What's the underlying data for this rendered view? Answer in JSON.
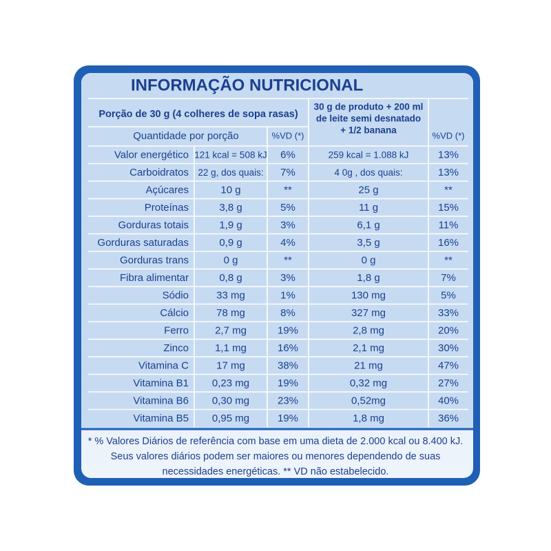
{
  "title": "INFORMAÇÃO NUTRICIONAL",
  "table": {
    "header": {
      "portion": "Porção de 30 g (4 colheres de sopa rasas)",
      "quantity": "Quantidade por porção",
      "vd": "%VD (*)",
      "portion2": [
        "30 g de produto + 200 ml",
        "de leite semi desnatado",
        "+ 1/2 banana"
      ],
      "vd2": "%VD (*)"
    },
    "rows": [
      [
        "Valor energético",
        "121 kcal = 508 kJ",
        "6%",
        "259 kcal = 1.088 kJ",
        "13%"
      ],
      [
        "Carboidratos",
        "22 g, dos quais:",
        "7%",
        "4 0g , dos quais:",
        "13%"
      ],
      [
        "Açúcares",
        "10 g",
        "**",
        "25 g",
        "**"
      ],
      [
        "Proteínas",
        "3,8 g",
        "5%",
        "11 g",
        "15%"
      ],
      [
        "Gorduras totais",
        "1,9 g",
        "3%",
        "6,1 g",
        "11%"
      ],
      [
        "Gorduras saturadas",
        "0,9 g",
        "4%",
        "3,5 g",
        "16%"
      ],
      [
        "Gorduras trans",
        "0 g",
        "**",
        "0 g",
        "**"
      ],
      [
        "Fibra alimentar",
        "0,8 g",
        "3%",
        "1,8 g",
        "7%"
      ],
      [
        "Sódio",
        "33 mg",
        "1%",
        "130 mg",
        "5%"
      ],
      [
        "Cálcio",
        "78 mg",
        "8%",
        "327 mg",
        "33%"
      ],
      [
        "Ferro",
        "2,7 mg",
        "19%",
        "2,8 mg",
        "20%"
      ],
      [
        "Zinco",
        "1,1 mg",
        "16%",
        "2,1 mg",
        "30%"
      ],
      [
        "Vitamina C",
        "17 mg",
        "38%",
        "21 mg",
        "47%"
      ],
      [
        "Vitamina B1",
        "0,23 mg",
        "19%",
        "0,32 mg",
        "27%"
      ],
      [
        "Vitamina B6",
        "0,30 mg",
        "23%",
        "0,52mg",
        "40%"
      ],
      [
        "Vitamina B5",
        "0,95 mg",
        "19%",
        "1,8 mg",
        "36%"
      ]
    ]
  },
  "footer": [
    "* % Valores Diários de referência com base em uma dieta de 2.000 kcal ou 8.400 kJ.",
    "Seus valores diários podem ser maiores ou menores dependendo de suas",
    "necessidades energéticas. ** VD não estabelecido."
  ]
}
